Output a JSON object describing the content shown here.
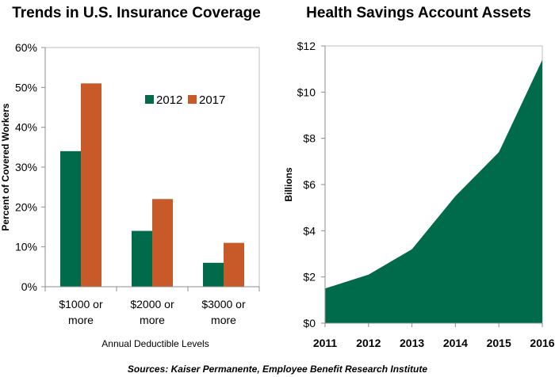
{
  "chart_data": [
    {
      "type": "bar",
      "title": "Trends in U.S. Insurance Coverage",
      "xlabel": "Annual Deductible Levels",
      "ylabel": "Percent of Covered Workers",
      "categories": [
        "$1000 or more",
        "$2000 or more",
        "$3000 or more"
      ],
      "category_lines": [
        [
          "$1000 or",
          "more"
        ],
        [
          "$2000 or",
          "more"
        ],
        [
          "$3000 or",
          "more"
        ]
      ],
      "series": [
        {
          "name": "2012",
          "values": [
            34,
            14,
            6
          ],
          "color": "#006b4a"
        },
        {
          "name": "2017",
          "values": [
            51,
            22,
            11
          ],
          "color": "#c85a2a"
        }
      ],
      "ylim": [
        0,
        60
      ],
      "yticks": [
        0,
        10,
        20,
        30,
        40,
        50,
        60
      ],
      "ytick_labels": [
        "0%",
        "10%",
        "20%",
        "30%",
        "40%",
        "50%",
        "60%"
      ],
      "grid": false,
      "legend": "center-right"
    },
    {
      "type": "area",
      "title": "Health Savings Account Assets",
      "ylabel": "Billions",
      "x": [
        "2011",
        "2012",
        "2013",
        "2014",
        "2015",
        "2016"
      ],
      "values": [
        1.5,
        2.1,
        3.2,
        5.5,
        7.4,
        11.4
      ],
      "color": "#006b4a",
      "ylim": [
        0,
        12
      ],
      "yticks": [
        0,
        2,
        4,
        6,
        8,
        10,
        12
      ],
      "ytick_labels": [
        "$0",
        "$2",
        "$4",
        "$6",
        "$8",
        "$10",
        "$12"
      ],
      "grid": false
    }
  ],
  "footer": {
    "source": "Sources: Kaiser Permanente, Employee Benefit Research Institute"
  },
  "colors": {
    "axis": "#8c8c8c",
    "plot_border": "#bfbfbf"
  }
}
